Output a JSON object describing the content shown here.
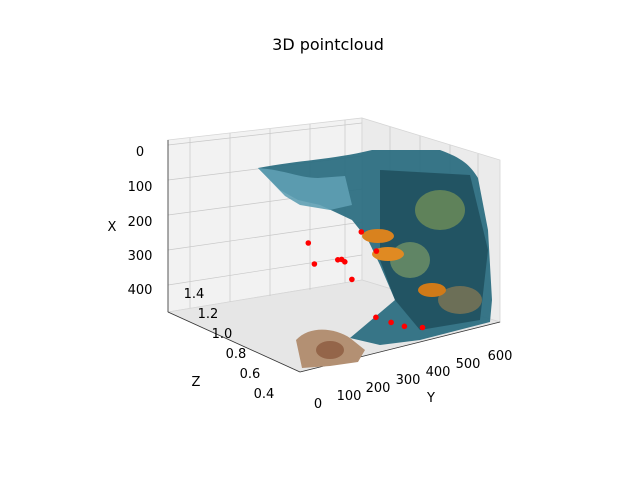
{
  "chart_data": {
    "type": "scatter",
    "title": "3D pointcloud",
    "projection": "3d",
    "grid": true,
    "axes": {
      "x": {
        "label": "X",
        "ticks": [
          "0",
          "100",
          "200",
          "300",
          "400"
        ],
        "range": [
          0,
          480
        ],
        "inverted": true
      },
      "y": {
        "label": "Y",
        "ticks": [
          "0",
          "100",
          "200",
          "300",
          "400",
          "500",
          "600"
        ],
        "range": [
          0,
          640
        ]
      },
      "z": {
        "label": "Z",
        "ticks": [
          "0.4",
          "0.6",
          "0.8",
          "1.0",
          "1.2",
          "1.4"
        ],
        "range": [
          0.3,
          1.45
        ]
      }
    },
    "series": [
      {
        "color": "#1f5e6e",
        "description_key": "textured coral reef surface"
      },
      {
        "color": "#ff0000",
        "points": [
          {
            "x": 240,
            "y": 200,
            "z": 1.0
          },
          {
            "x": 320,
            "y": 230,
            "z": 1.1
          },
          {
            "x": 300,
            "y": 280,
            "z": 1.05
          },
          {
            "x": 295,
            "y": 285,
            "z": 1.02
          },
          {
            "x": 300,
            "y": 290,
            "z": 1.0
          },
          {
            "x": 350,
            "y": 300,
            "z": 0.95
          },
          {
            "x": 230,
            "y": 360,
            "z": 1.2
          },
          {
            "x": 285,
            "y": 390,
            "z": 1.15
          },
          {
            "x": 420,
            "y": 300,
            "z": 0.55
          },
          {
            "x": 430,
            "y": 330,
            "z": 0.5
          },
          {
            "x": 440,
            "y": 360,
            "z": 0.48
          },
          {
            "x": 440,
            "y": 400,
            "z": 0.45
          }
        ]
      }
    ]
  }
}
